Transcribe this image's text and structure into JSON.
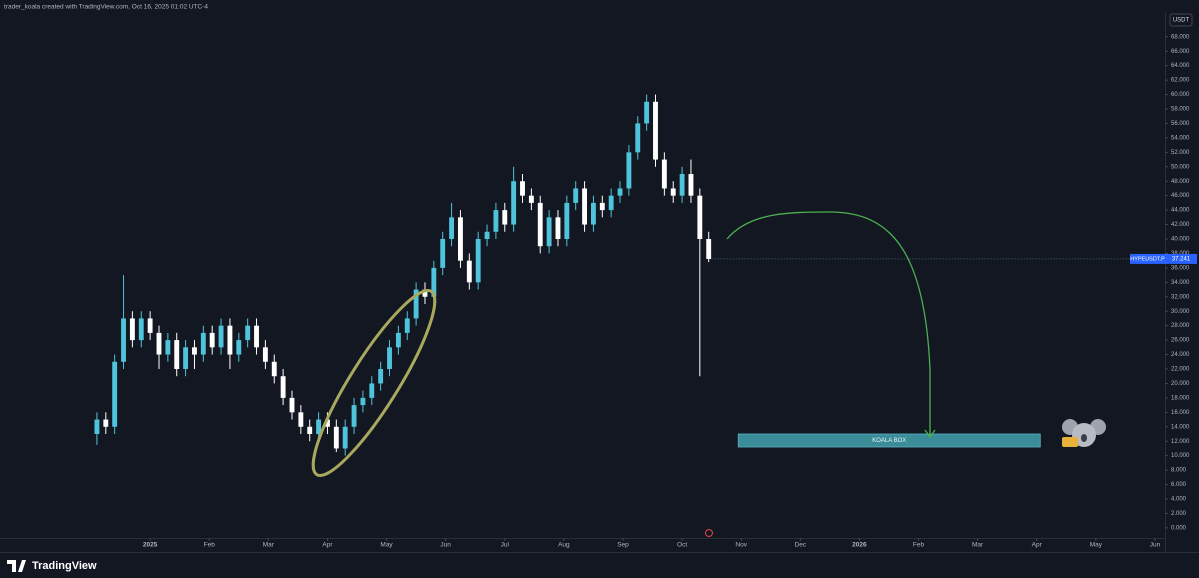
{
  "header": {
    "attribution": "trader_koala created with TradingView.com, Oct 16, 2025 01:02 UTC-4"
  },
  "footer": {
    "brand": "TradingView"
  },
  "chart_data": {
    "type": "candlestick",
    "y_unit": "USDT",
    "xlim": [
      -2.54,
      17.17
    ],
    "ylim": [
      -1.4,
      70.6
    ],
    "xticks": [
      {
        "value": 0,
        "label": "2025"
      },
      {
        "value": 1,
        "label": "Feb"
      },
      {
        "value": 2,
        "label": "Mar"
      },
      {
        "value": 3,
        "label": "Apr"
      },
      {
        "value": 4,
        "label": "May"
      },
      {
        "value": 5,
        "label": "Jun"
      },
      {
        "value": 6,
        "label": "Jul"
      },
      {
        "value": 7,
        "label": "Aug"
      },
      {
        "value": 8,
        "label": "Sep"
      },
      {
        "value": 9,
        "label": "Oct"
      },
      {
        "value": 10,
        "label": "Nov"
      },
      {
        "value": 11,
        "label": "Dec"
      },
      {
        "value": 12,
        "label": "2026"
      },
      {
        "value": 13,
        "label": "Feb"
      },
      {
        "value": 14,
        "label": "Mar"
      },
      {
        "value": 15,
        "label": "Apr"
      },
      {
        "value": 16,
        "label": "May"
      },
      {
        "value": 17,
        "label": "Jun"
      }
    ],
    "yticks": [
      {
        "value": 0,
        "label": "0.000"
      },
      {
        "value": 2,
        "label": "2.000"
      },
      {
        "value": 4,
        "label": "4.000"
      },
      {
        "value": 6,
        "label": "6.000"
      },
      {
        "value": 8,
        "label": "8.000"
      },
      {
        "value": 10,
        "label": "10.000"
      },
      {
        "value": 12,
        "label": "12.000"
      },
      {
        "value": 14,
        "label": "14.000"
      },
      {
        "value": 16,
        "label": "16.000"
      },
      {
        "value": 18,
        "label": "18.000"
      },
      {
        "value": 20,
        "label": "20.000"
      },
      {
        "value": 22,
        "label": "22.000"
      },
      {
        "value": 24,
        "label": "24.000"
      },
      {
        "value": 26,
        "label": "26.000"
      },
      {
        "value": 28,
        "label": "28.000"
      },
      {
        "value": 30,
        "label": "30.000"
      },
      {
        "value": 32,
        "label": "32.000"
      },
      {
        "value": 34,
        "label": "34.000"
      },
      {
        "value": 36,
        "label": "36.000"
      },
      {
        "value": 38,
        "label": "38.000"
      },
      {
        "value": 40,
        "label": "40.000"
      },
      {
        "value": 42,
        "label": "42.000"
      },
      {
        "value": 44,
        "label": "44.000"
      },
      {
        "value": 46,
        "label": "46.000"
      },
      {
        "value": 48,
        "label": "48.000"
      },
      {
        "value": 50,
        "label": "50.000"
      },
      {
        "value": 52,
        "label": "52.000"
      },
      {
        "value": 54,
        "label": "54.000"
      },
      {
        "value": 56,
        "label": "56.000"
      },
      {
        "value": 58,
        "label": "58.000"
      },
      {
        "value": 60,
        "label": "60.000"
      },
      {
        "value": 62,
        "label": "62.000"
      },
      {
        "value": 64,
        "label": "64.000"
      },
      {
        "value": 66,
        "label": "66.000"
      },
      {
        "value": 68,
        "label": "68.000"
      }
    ],
    "series": [
      {
        "name": "HYPEUSDT.P",
        "up_color": "#4fc3dc",
        "down_color": "#ffffff",
        "last_price": 37.241,
        "x": [
          -0.9,
          -0.75,
          -0.6,
          -0.45,
          -0.3,
          -0.15,
          0,
          0.15,
          0.3,
          0.45,
          0.6,
          0.75,
          0.9,
          1.05,
          1.2,
          1.35,
          1.5,
          1.65,
          1.8,
          1.95,
          2.1,
          2.25,
          2.4,
          2.55,
          2.7,
          2.85,
          3,
          3.15,
          3.3,
          3.45,
          3.6,
          3.75,
          3.9,
          4.05,
          4.2,
          4.35,
          4.5,
          4.65,
          4.8,
          4.95,
          5.1,
          5.25,
          5.4,
          5.55,
          5.7,
          5.85,
          6,
          6.15,
          6.3,
          6.45,
          6.6,
          6.75,
          6.9,
          7.05,
          7.2,
          7.35,
          7.5,
          7.65,
          7.8,
          7.95,
          8.1,
          8.25,
          8.4,
          8.55,
          8.7,
          8.85,
          9,
          9.15,
          9.3,
          9.45
        ],
        "open": [
          13,
          15,
          14,
          23,
          29,
          26,
          29,
          27,
          24,
          26,
          22,
          25,
          24,
          27,
          25,
          28,
          24,
          26,
          28,
          25,
          23,
          21,
          18,
          16,
          14,
          13,
          15,
          14,
          11,
          14,
          17,
          18,
          20,
          22,
          25,
          27,
          29,
          33,
          32,
          36,
          40,
          43,
          37,
          34,
          40,
          41,
          44,
          42,
          48,
          46,
          45,
          39,
          43,
          40,
          45,
          47,
          42,
          45,
          44,
          46,
          47,
          52,
          56,
          59,
          51,
          47,
          46,
          49,
          46,
          40
        ],
        "high": [
          16,
          16,
          24,
          35,
          30,
          30,
          30,
          28,
          27,
          27,
          26,
          26,
          28,
          28,
          29,
          29,
          27,
          29,
          29,
          26,
          24,
          22,
          19,
          17,
          15,
          16,
          16,
          15,
          15,
          18,
          19,
          21,
          23,
          26,
          28,
          30,
          34,
          34,
          37,
          41,
          45,
          44,
          38,
          41,
          42,
          45,
          45,
          50,
          49,
          47,
          46,
          44,
          44,
          46,
          48,
          48,
          46,
          46,
          47,
          48,
          53,
          57,
          60,
          60,
          52,
          48,
          50,
          51,
          47,
          41
        ],
        "low": [
          11.5,
          13,
          13,
          22,
          25,
          25,
          26,
          22,
          23,
          21,
          21,
          22,
          23,
          24,
          24,
          22,
          23,
          25,
          24,
          22,
          20,
          17,
          15,
          13,
          12,
          12,
          13,
          10.5,
          10,
          13,
          16,
          17,
          19,
          21,
          24,
          26,
          28,
          31,
          31,
          35,
          39,
          36,
          33,
          33,
          39,
          40,
          41,
          41,
          45,
          44,
          38,
          38,
          39,
          39,
          44,
          41,
          41,
          43,
          43,
          45,
          46,
          51,
          55,
          50,
          46,
          45,
          45,
          45,
          21,
          36.8
        ],
        "close": [
          15,
          14,
          23,
          29,
          26,
          29,
          27,
          24,
          26,
          22,
          25,
          24,
          27,
          25,
          28,
          24,
          26,
          28,
          25,
          23,
          21,
          18,
          16,
          14,
          13,
          15,
          14,
          11,
          14,
          17,
          18,
          20,
          22,
          25,
          27,
          29,
          33,
          32,
          36,
          40,
          43,
          37,
          34,
          40,
          41,
          44,
          42,
          48,
          46,
          45,
          39,
          43,
          40,
          45,
          47,
          42,
          45,
          44,
          46,
          47,
          52,
          56,
          59,
          51,
          47,
          46,
          49,
          46,
          40,
          37.241
        ]
      }
    ],
    "zone": {
      "label": "KOALA BOX",
      "x_start": 9.95,
      "x_end": 15.06,
      "top": 13,
      "bottom": 11.2,
      "color": "#3a8c99"
    }
  }
}
